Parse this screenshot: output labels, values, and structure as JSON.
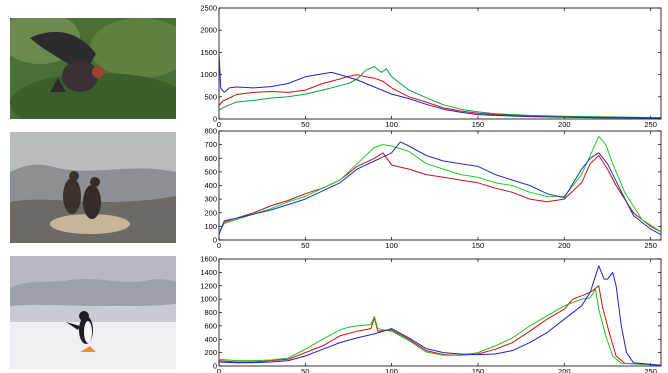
{
  "photos": [
    {
      "icon": "bird-wings-spread-in-shrub-photo"
    },
    {
      "icon": "two-cormorants-on-rocky-nest-photo"
    },
    {
      "icon": "gentoo-penguin-on-snow-photo"
    }
  ],
  "chart_data": [
    {
      "type": "line",
      "title": "",
      "xlabel": "",
      "ylabel": "",
      "xlim": [
        0,
        256
      ],
      "ylim": [
        0,
        2500
      ],
      "xticks": [
        0,
        50,
        100,
        150,
        200,
        250
      ],
      "yticks": [
        0,
        500,
        1000,
        1500,
        2000,
        2500
      ],
      "series": [
        {
          "color": "#d01010",
          "points": [
            [
              0,
              300
            ],
            [
              2,
              400
            ],
            [
              5,
              450
            ],
            [
              10,
              550
            ],
            [
              20,
              600
            ],
            [
              30,
              620
            ],
            [
              40,
              600
            ],
            [
              50,
              650
            ],
            [
              60,
              800
            ],
            [
              70,
              900
            ],
            [
              75,
              960
            ],
            [
              80,
              1000
            ],
            [
              85,
              950
            ],
            [
              90,
              920
            ],
            [
              95,
              850
            ],
            [
              100,
              700
            ],
            [
              110,
              500
            ],
            [
              120,
              380
            ],
            [
              130,
              250
            ],
            [
              140,
              180
            ],
            [
              150,
              130
            ],
            [
              160,
              100
            ],
            [
              180,
              70
            ],
            [
              200,
              50
            ],
            [
              220,
              40
            ],
            [
              240,
              30
            ],
            [
              256,
              20
            ]
          ]
        },
        {
          "color": "#10a040",
          "points": [
            [
              0,
              200
            ],
            [
              2,
              250
            ],
            [
              5,
              300
            ],
            [
              10,
              380
            ],
            [
              20,
              420
            ],
            [
              30,
              470
            ],
            [
              40,
              500
            ],
            [
              50,
              560
            ],
            [
              60,
              650
            ],
            [
              70,
              750
            ],
            [
              75,
              800
            ],
            [
              80,
              900
            ],
            [
              85,
              1100
            ],
            [
              90,
              1180
            ],
            [
              94,
              1050
            ],
            [
              97,
              1130
            ],
            [
              100,
              950
            ],
            [
              110,
              650
            ],
            [
              120,
              480
            ],
            [
              130,
              320
            ],
            [
              140,
              220
            ],
            [
              150,
              160
            ],
            [
              160,
              120
            ],
            [
              180,
              80
            ],
            [
              200,
              60
            ],
            [
              220,
              50
            ],
            [
              240,
              40
            ],
            [
              256,
              30
            ]
          ]
        },
        {
          "color": "#2020d0",
          "points": [
            [
              0,
              1500
            ],
            [
              1,
              700
            ],
            [
              3,
              600
            ],
            [
              6,
              700
            ],
            [
              10,
              720
            ],
            [
              20,
              700
            ],
            [
              30,
              730
            ],
            [
              40,
              800
            ],
            [
              50,
              950
            ],
            [
              60,
              1020
            ],
            [
              65,
              1050
            ],
            [
              70,
              1000
            ],
            [
              80,
              880
            ],
            [
              90,
              720
            ],
            [
              100,
              560
            ],
            [
              110,
              460
            ],
            [
              120,
              330
            ],
            [
              130,
              220
            ],
            [
              140,
              150
            ],
            [
              150,
              100
            ],
            [
              160,
              80
            ],
            [
              180,
              55
            ],
            [
              200,
              40
            ],
            [
              220,
              30
            ],
            [
              240,
              25
            ],
            [
              256,
              20
            ]
          ]
        }
      ]
    },
    {
      "type": "line",
      "title": "",
      "xlabel": "",
      "ylabel": "",
      "xlim": [
        0,
        256
      ],
      "ylim": [
        0,
        800
      ],
      "xticks": [
        0,
        50,
        100,
        150,
        200,
        250
      ],
      "yticks": [
        0,
        100,
        200,
        300,
        400,
        500,
        600,
        700,
        800
      ],
      "series": [
        {
          "color": "#c01020",
          "points": [
            [
              0,
              50
            ],
            [
              3,
              130
            ],
            [
              10,
              160
            ],
            [
              20,
              200
            ],
            [
              30,
              250
            ],
            [
              40,
              290
            ],
            [
              50,
              340
            ],
            [
              60,
              380
            ],
            [
              70,
              440
            ],
            [
              80,
              540
            ],
            [
              90,
              600
            ],
            [
              95,
              640
            ],
            [
              100,
              550
            ],
            [
              110,
              520
            ],
            [
              120,
              480
            ],
            [
              130,
              460
            ],
            [
              140,
              440
            ],
            [
              150,
              420
            ],
            [
              160,
              380
            ],
            [
              170,
              350
            ],
            [
              180,
              300
            ],
            [
              190,
              280
            ],
            [
              200,
              300
            ],
            [
              210,
              420
            ],
            [
              215,
              560
            ],
            [
              220,
              620
            ],
            [
              225,
              520
            ],
            [
              230,
              400
            ],
            [
              240,
              200
            ],
            [
              250,
              100
            ],
            [
              256,
              60
            ]
          ]
        },
        {
          "color": "#20d020",
          "points": [
            [
              0,
              60
            ],
            [
              3,
              120
            ],
            [
              10,
              150
            ],
            [
              20,
              190
            ],
            [
              30,
              230
            ],
            [
              40,
              280
            ],
            [
              50,
              320
            ],
            [
              60,
              380
            ],
            [
              70,
              440
            ],
            [
              80,
              560
            ],
            [
              90,
              680
            ],
            [
              95,
              700
            ],
            [
              100,
              690
            ],
            [
              110,
              650
            ],
            [
              120,
              560
            ],
            [
              130,
              520
            ],
            [
              140,
              480
            ],
            [
              150,
              460
            ],
            [
              160,
              420
            ],
            [
              170,
              400
            ],
            [
              180,
              350
            ],
            [
              190,
              320
            ],
            [
              200,
              320
            ],
            [
              210,
              480
            ],
            [
              215,
              620
            ],
            [
              220,
              760
            ],
            [
              224,
              700
            ],
            [
              228,
              560
            ],
            [
              235,
              350
            ],
            [
              245,
              150
            ],
            [
              256,
              60
            ]
          ]
        },
        {
          "color": "#2030c0",
          "points": [
            [
              0,
              40
            ],
            [
              3,
              140
            ],
            [
              10,
              160
            ],
            [
              20,
              190
            ],
            [
              30,
              220
            ],
            [
              40,
              260
            ],
            [
              50,
              300
            ],
            [
              60,
              360
            ],
            [
              70,
              420
            ],
            [
              80,
              520
            ],
            [
              90,
              580
            ],
            [
              100,
              640
            ],
            [
              105,
              720
            ],
            [
              110,
              690
            ],
            [
              120,
              620
            ],
            [
              130,
              580
            ],
            [
              140,
              560
            ],
            [
              150,
              540
            ],
            [
              160,
              480
            ],
            [
              170,
              440
            ],
            [
              180,
              400
            ],
            [
              190,
              340
            ],
            [
              200,
              310
            ],
            [
              210,
              520
            ],
            [
              215,
              600
            ],
            [
              220,
              640
            ],
            [
              225,
              560
            ],
            [
              232,
              380
            ],
            [
              240,
              180
            ],
            [
              250,
              80
            ],
            [
              256,
              40
            ]
          ]
        }
      ]
    },
    {
      "type": "line",
      "title": "",
      "xlabel": "",
      "ylabel": "",
      "xlim": [
        0,
        256
      ],
      "ylim": [
        0,
        1600
      ],
      "xticks": [
        0,
        50,
        100,
        150,
        200,
        250
      ],
      "yticks": [
        0,
        200,
        400,
        600,
        800,
        1000,
        1200,
        1400,
        1600
      ],
      "series": [
        {
          "color": "#d01010",
          "points": [
            [
              0,
              80
            ],
            [
              10,
              60
            ],
            [
              20,
              60
            ],
            [
              30,
              80
            ],
            [
              40,
              100
            ],
            [
              50,
              200
            ],
            [
              60,
              300
            ],
            [
              70,
              450
            ],
            [
              80,
              520
            ],
            [
              88,
              560
            ],
            [
              90,
              720
            ],
            [
              92,
              520
            ],
            [
              100,
              540
            ],
            [
              110,
              400
            ],
            [
              120,
              230
            ],
            [
              130,
              170
            ],
            [
              140,
              160
            ],
            [
              150,
              180
            ],
            [
              160,
              250
            ],
            [
              170,
              350
            ],
            [
              180,
              520
            ],
            [
              190,
              700
            ],
            [
              200,
              850
            ],
            [
              205,
              1000
            ],
            [
              210,
              1050
            ],
            [
              215,
              1100
            ],
            [
              220,
              1200
            ],
            [
              222,
              900
            ],
            [
              226,
              500
            ],
            [
              230,
              150
            ],
            [
              235,
              40
            ],
            [
              256,
              10
            ]
          ]
        },
        {
          "color": "#20c020",
          "points": [
            [
              0,
              100
            ],
            [
              10,
              80
            ],
            [
              20,
              80
            ],
            [
              30,
              90
            ],
            [
              40,
              120
            ],
            [
              50,
              250
            ],
            [
              60,
              400
            ],
            [
              70,
              540
            ],
            [
              75,
              580
            ],
            [
              80,
              600
            ],
            [
              88,
              620
            ],
            [
              90,
              740
            ],
            [
              92,
              560
            ],
            [
              100,
              520
            ],
            [
              110,
              380
            ],
            [
              120,
              210
            ],
            [
              130,
              160
            ],
            [
              140,
              160
            ],
            [
              150,
              200
            ],
            [
              160,
              300
            ],
            [
              170,
              420
            ],
            [
              180,
              600
            ],
            [
              190,
              750
            ],
            [
              200,
              900
            ],
            [
              210,
              1000
            ],
            [
              215,
              1020
            ],
            [
              218,
              1150
            ],
            [
              220,
              850
            ],
            [
              224,
              450
            ],
            [
              228,
              150
            ],
            [
              233,
              40
            ],
            [
              256,
              10
            ]
          ]
        },
        {
          "color": "#2020d0",
          "points": [
            [
              0,
              60
            ],
            [
              10,
              50
            ],
            [
              20,
              50
            ],
            [
              30,
              60
            ],
            [
              40,
              80
            ],
            [
              50,
              150
            ],
            [
              60,
              250
            ],
            [
              70,
              350
            ],
            [
              80,
              420
            ],
            [
              90,
              480
            ],
            [
              100,
              560
            ],
            [
              110,
              420
            ],
            [
              120,
              260
            ],
            [
              130,
              200
            ],
            [
              140,
              180
            ],
            [
              150,
              170
            ],
            [
              160,
              180
            ],
            [
              170,
              230
            ],
            [
              180,
              350
            ],
            [
              190,
              500
            ],
            [
              200,
              700
            ],
            [
              210,
              900
            ],
            [
              215,
              1100
            ],
            [
              220,
              1500
            ],
            [
              223,
              1300
            ],
            [
              225,
              1300
            ],
            [
              228,
              1400
            ],
            [
              230,
              1200
            ],
            [
              233,
              600
            ],
            [
              236,
              200
            ],
            [
              240,
              50
            ],
            [
              256,
              10
            ]
          ]
        }
      ]
    }
  ]
}
